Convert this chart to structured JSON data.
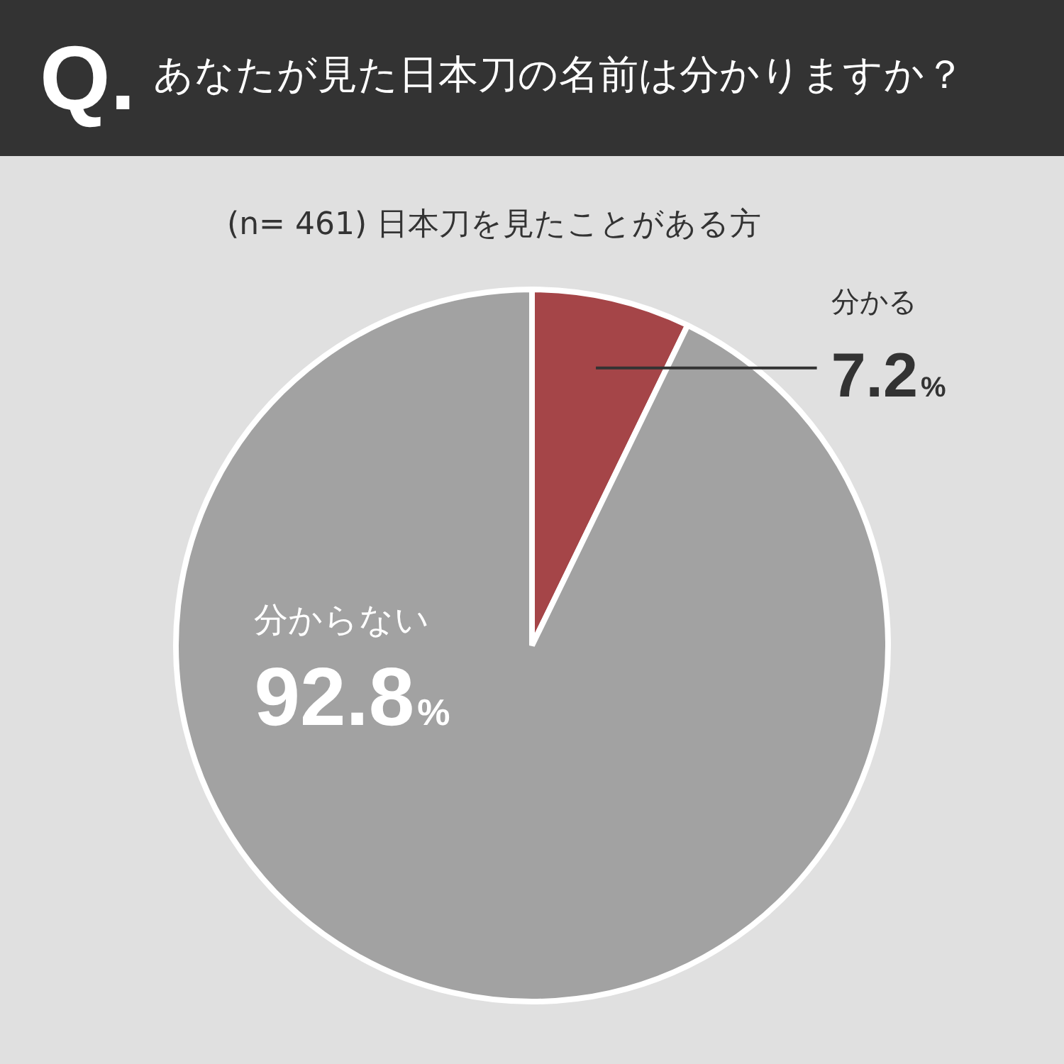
{
  "chart_data": {
    "type": "pie",
    "title": "Q. あなたが見た日本刀の名前は分かりますか？",
    "subtitle": "(n= 461) 日本刀を見たことがある方",
    "categories": [
      "分かる",
      "分からない"
    ],
    "values": [
      7.2,
      92.8
    ],
    "colors": [
      "#a54548",
      "#a2a2a2"
    ],
    "value_labels": [
      "7.2%",
      "92.8%"
    ],
    "legend": false
  }
}
